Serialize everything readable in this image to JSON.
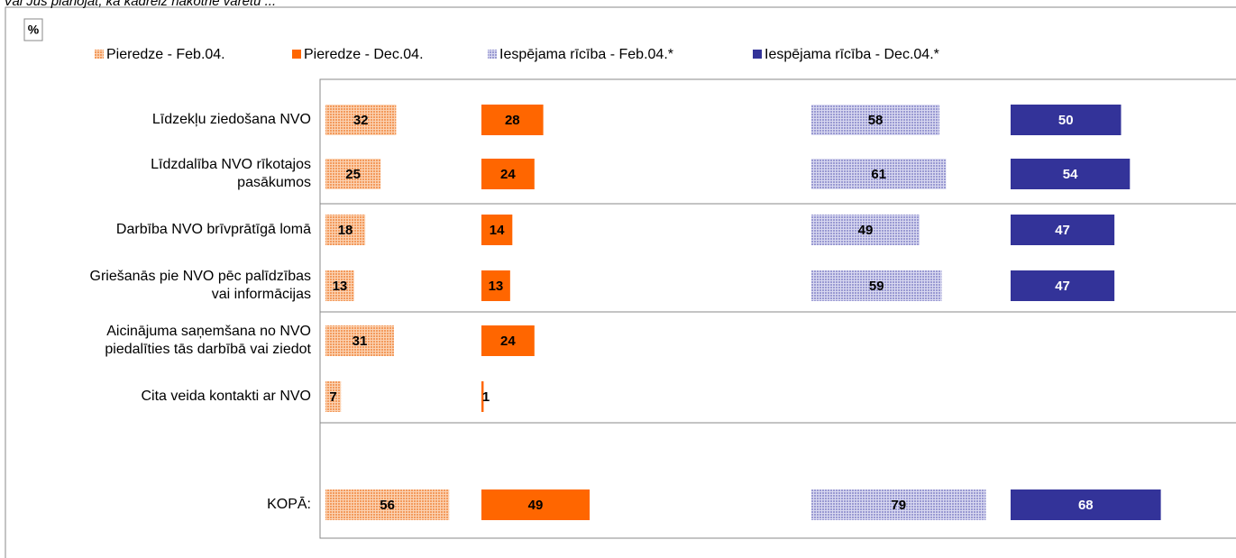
{
  "chart_data": {
    "type": "bar",
    "title": "Vai Jūs plānojat, ka kādreiz nākotnē varētu ...",
    "unit_label": "%",
    "categories": [
      "Līdzekļu ziedošana NVO",
      "Līdzdalība NVO rīkotajos\npasākumos",
      "Darbība NVO brīvprātīgā lomā",
      "Griešanās pie NVO pēc palīdzības\nvai informācijas",
      "Aicinājuma saņemšana no NVO\npiedalīties tās darbībā vai ziedot",
      "Cita veida kontakti ar NVO",
      "KOPĀ:"
    ],
    "series": [
      {
        "name": "Pieredze - Feb.04.",
        "color": "#f7a870",
        "pattern": true,
        "values": [
          32,
          25,
          18,
          13,
          31,
          7,
          56
        ]
      },
      {
        "name": "Pieredze - Dec.04.",
        "color": "#ff6600",
        "pattern": false,
        "values": [
          28,
          24,
          14,
          13,
          24,
          1,
          49
        ]
      },
      {
        "name": "Iespējama rīcība - Feb.04.*",
        "color": "#a9a9dc",
        "pattern": true,
        "values": [
          58,
          61,
          49,
          59,
          null,
          null,
          79
        ]
      },
      {
        "name": "Iespējama rīcība - Dec.04.*",
        "color": "#333399",
        "pattern": false,
        "values": [
          50,
          54,
          47,
          47,
          null,
          null,
          68
        ]
      }
    ]
  }
}
